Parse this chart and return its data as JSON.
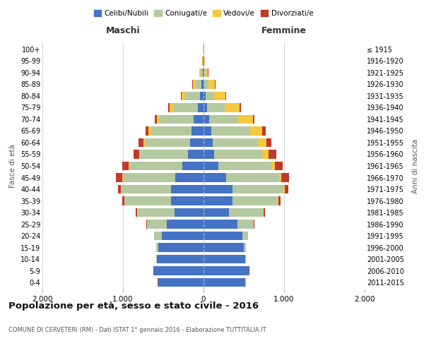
{
  "age_groups": [
    "0-4",
    "5-9",
    "10-14",
    "15-19",
    "20-24",
    "25-29",
    "30-34",
    "35-39",
    "40-44",
    "45-49",
    "50-54",
    "55-59",
    "60-64",
    "65-69",
    "70-74",
    "75-79",
    "80-84",
    "85-89",
    "90-94",
    "95-99",
    "100+"
  ],
  "birth_years": [
    "2011-2015",
    "2006-2010",
    "2001-2005",
    "1996-2000",
    "1991-1995",
    "1986-1990",
    "1981-1985",
    "1976-1980",
    "1971-1975",
    "1966-1970",
    "1961-1965",
    "1956-1960",
    "1951-1955",
    "1946-1950",
    "1941-1945",
    "1936-1940",
    "1931-1935",
    "1926-1930",
    "1921-1925",
    "1916-1920",
    "≤ 1915"
  ],
  "maschi": {
    "celibi": [
      560,
      620,
      580,
      560,
      520,
      460,
      360,
      400,
      400,
      350,
      260,
      190,
      170,
      150,
      120,
      70,
      45,
      25,
      12,
      5,
      3
    ],
    "coniugati": [
      4,
      5,
      8,
      25,
      90,
      240,
      460,
      580,
      620,
      650,
      660,
      600,
      560,
      500,
      420,
      300,
      180,
      80,
      25,
      8,
      4
    ],
    "vedovi": [
      1,
      1,
      1,
      1,
      1,
      2,
      2,
      2,
      5,
      5,
      8,
      10,
      20,
      30,
      40,
      50,
      45,
      30,
      15,
      5,
      2
    ],
    "divorziati": [
      1,
      1,
      1,
      2,
      4,
      8,
      18,
      25,
      35,
      80,
      80,
      70,
      55,
      35,
      25,
      15,
      8,
      4,
      2,
      1,
      1
    ]
  },
  "femmine": {
    "nubili": [
      520,
      560,
      520,
      500,
      480,
      420,
      320,
      360,
      360,
      280,
      180,
      130,
      110,
      100,
      70,
      40,
      25,
      12,
      6,
      3,
      1
    ],
    "coniugate": [
      3,
      4,
      6,
      20,
      70,
      200,
      420,
      560,
      630,
      660,
      660,
      600,
      560,
      480,
      360,
      220,
      110,
      50,
      15,
      5,
      2
    ],
    "vedove": [
      1,
      1,
      1,
      2,
      2,
      3,
      5,
      8,
      15,
      25,
      45,
      80,
      110,
      150,
      180,
      190,
      140,
      80,
      35,
      10,
      3
    ],
    "divorziate": [
      1,
      1,
      1,
      2,
      4,
      8,
      15,
      25,
      45,
      100,
      100,
      90,
      65,
      45,
      25,
      15,
      8,
      4,
      2,
      1,
      1
    ]
  },
  "colors": {
    "celibi": "#4472c4",
    "coniugati": "#b5c9a0",
    "vedovi": "#f5c842",
    "divorziati": "#c0392b"
  },
  "xlim": 2000,
  "title": "Popolazione per età, sesso e stato civile - 2016",
  "subtitle": "COMUNE DI CERVETERI (RM) - Dati ISTAT 1° gennaio 2016 - Elaborazione TUTTITALIA.IT",
  "ylabel_left": "Fasce di età",
  "ylabel_right": "Anni di nascita",
  "label_maschi": "Maschi",
  "label_femmine": "Femmine",
  "bg_color": "#ffffff",
  "grid_color": "#cccccc",
  "bar_height": 0.75
}
